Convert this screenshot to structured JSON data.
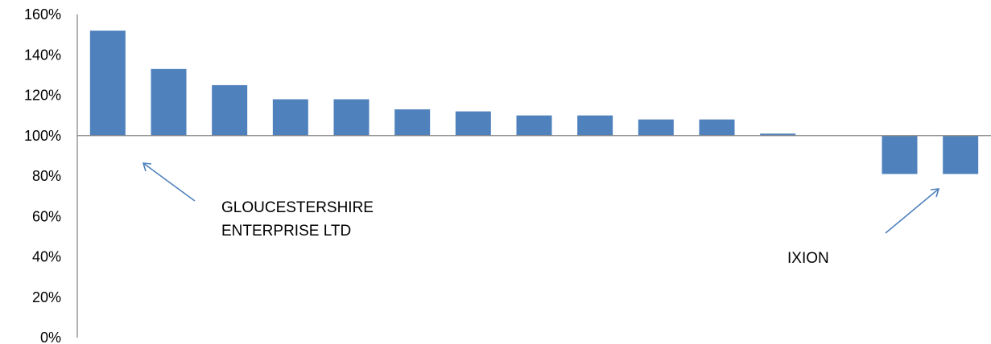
{
  "chart_data": {
    "type": "bar",
    "title": "",
    "xlabel": "",
    "ylabel": "",
    "ylim": [
      0,
      160
    ],
    "yticks": [
      "0%",
      "20%",
      "40%",
      "60%",
      "80%",
      "100%",
      "120%",
      "140%",
      "160%"
    ],
    "baseline": 100,
    "grid": false,
    "legend": "none",
    "bar_color": "#4F81BD",
    "arrow_color": "#4F81BD",
    "values": [
      152,
      133,
      125,
      118,
      118,
      113,
      112,
      110,
      110,
      108,
      108,
      101,
      100,
      81,
      81
    ],
    "annotations": [
      {
        "text_lines": [
          "GLOUCESTERSHIRE",
          "ENTERPRISE LTD"
        ],
        "points_to_bar": 0
      },
      {
        "text_lines": [
          "IXION"
        ],
        "points_to_bar": 14
      }
    ]
  }
}
